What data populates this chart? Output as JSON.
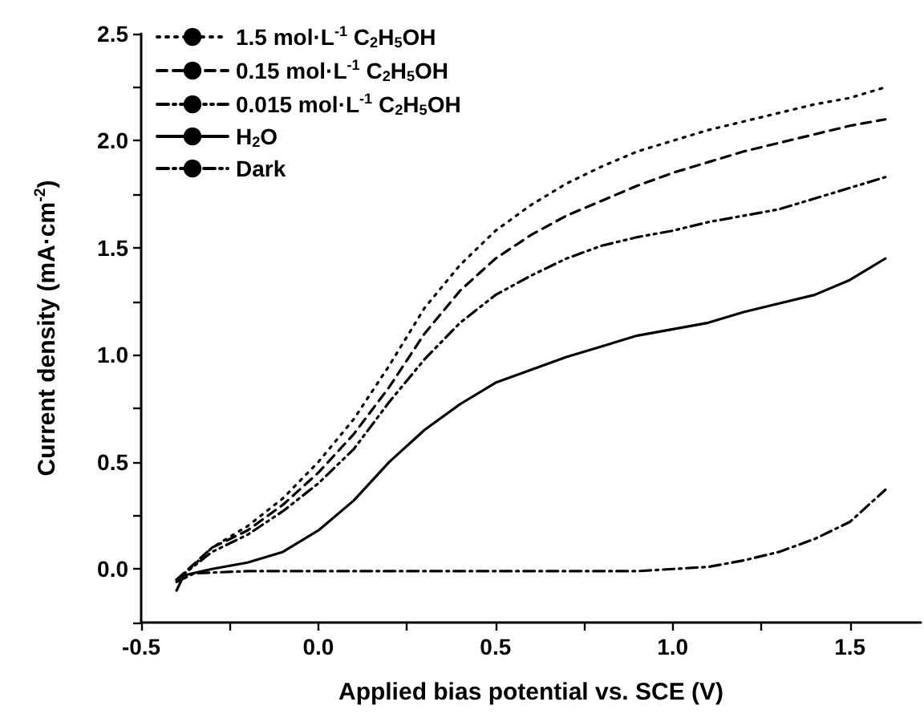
{
  "chart_data": {
    "type": "line",
    "xlabel": "Applied bias potential vs. SCE (V)",
    "ylabel": "Current density (mA·cm$^{-2}$)",
    "xlim": [
      -0.5,
      1.7
    ],
    "ylim": [
      -0.25,
      2.5
    ],
    "xticks": [
      {
        "value": -0.5,
        "label": "-0.5"
      },
      {
        "value": -0.25,
        "label": null
      },
      {
        "value": 0,
        "label": "0.0"
      },
      {
        "value": 0.25,
        "label": null
      },
      {
        "value": 0.5,
        "label": "0.5"
      },
      {
        "value": 0.75,
        "label": null
      },
      {
        "value": 1,
        "label": "1.0"
      },
      {
        "value": 1.25,
        "label": null
      },
      {
        "value": 1.5,
        "label": "1.5"
      }
    ],
    "yticks": [
      {
        "value": -0.25,
        "label": null
      },
      {
        "value": 0,
        "label": "0.0"
      },
      {
        "value": 0.25,
        "label": null
      },
      {
        "value": 0.5,
        "label": "0.5"
      },
      {
        "value": 0.75,
        "label": null
      },
      {
        "value": 1,
        "label": "1.0"
      },
      {
        "value": 1.25,
        "label": null
      },
      {
        "value": 1.5,
        "label": "1.5"
      },
      {
        "value": 1.75,
        "label": null
      },
      {
        "value": 2,
        "label": "2.0"
      },
      {
        "value": 2.25,
        "label": null
      },
      {
        "value": 2.5,
        "label": "2.5"
      }
    ],
    "grid": false,
    "legend": "top left",
    "marker": "none",
    "series": [
      {
        "name": "1.5 mol·L$^{-1}$ C$_{2}$H$_{5}$OH",
        "color": "#000000",
        "line_style": "dotted",
        "x": [
          -0.4,
          -0.35,
          -0.3,
          -0.2,
          -0.1,
          0,
          0.1,
          0.2,
          0.3,
          0.4,
          0.5,
          0.6,
          0.7,
          0.8,
          0.9,
          1.0,
          1.1,
          1.2,
          1.3,
          1.4,
          1.5,
          1.6
        ],
        "values": [
          -0.05,
          0.02,
          0.1,
          0.2,
          0.33,
          0.5,
          0.7,
          0.95,
          1.22,
          1.42,
          1.58,
          1.7,
          1.8,
          1.88,
          1.95,
          2.0,
          2.05,
          2.09,
          2.13,
          2.17,
          2.2,
          2.25
        ]
      },
      {
        "name": "0.15 mol·L$^{-1}$ C$_{2}$H$_{5}$OH",
        "color": "#000000",
        "line_style": "dashed",
        "x": [
          -0.4,
          -0.3,
          -0.2,
          -0.1,
          0,
          0.1,
          0.2,
          0.3,
          0.4,
          0.5,
          0.6,
          0.7,
          0.8,
          0.9,
          1.0,
          1.1,
          1.2,
          1.3,
          1.4,
          1.5,
          1.6
        ],
        "values": [
          -0.05,
          0.1,
          0.18,
          0.3,
          0.45,
          0.63,
          0.85,
          1.1,
          1.3,
          1.45,
          1.56,
          1.65,
          1.72,
          1.79,
          1.85,
          1.9,
          1.95,
          1.99,
          2.03,
          2.07,
          2.1
        ]
      },
      {
        "name": "0.015 mol·L$^{-1}$ C$_{2}$H$_{5}$OH",
        "color": "#000000",
        "line_style": "dashdotdot",
        "x": [
          -0.4,
          -0.3,
          -0.2,
          -0.1,
          0,
          0.1,
          0.2,
          0.3,
          0.4,
          0.5,
          0.6,
          0.7,
          0.8,
          0.9,
          1.0,
          1.1,
          1.2,
          1.3,
          1.4,
          1.5,
          1.6
        ],
        "values": [
          -0.05,
          0.08,
          0.16,
          0.27,
          0.4,
          0.56,
          0.78,
          0.98,
          1.15,
          1.28,
          1.37,
          1.45,
          1.51,
          1.55,
          1.58,
          1.62,
          1.65,
          1.68,
          1.73,
          1.78,
          1.83
        ]
      },
      {
        "name": "H$_{2}$O",
        "color": "#000000",
        "line_style": "solid",
        "x": [
          -0.4,
          -0.38,
          -0.3,
          -0.2,
          -0.1,
          0,
          0.1,
          0.2,
          0.3,
          0.4,
          0.5,
          0.6,
          0.7,
          0.8,
          0.9,
          1.0,
          1.1,
          1.2,
          1.3,
          1.4,
          1.5,
          1.6
        ],
        "values": [
          -0.1,
          -0.03,
          0.0,
          0.03,
          0.08,
          0.18,
          0.32,
          0.5,
          0.65,
          0.77,
          0.87,
          0.93,
          0.99,
          1.04,
          1.09,
          1.12,
          1.15,
          1.2,
          1.24,
          1.28,
          1.35,
          1.45
        ]
      },
      {
        "name": "Dark",
        "color": "#000000",
        "line_style": "dashdot",
        "x": [
          -0.4,
          -0.35,
          -0.2,
          0.5,
          0.9,
          1.0,
          1.1,
          1.2,
          1.3,
          1.4,
          1.5,
          1.6
        ],
        "values": [
          -0.06,
          -0.02,
          -0.01,
          -0.01,
          -0.01,
          0.0,
          0.01,
          0.04,
          0.08,
          0.14,
          0.22,
          0.37
        ]
      }
    ]
  }
}
